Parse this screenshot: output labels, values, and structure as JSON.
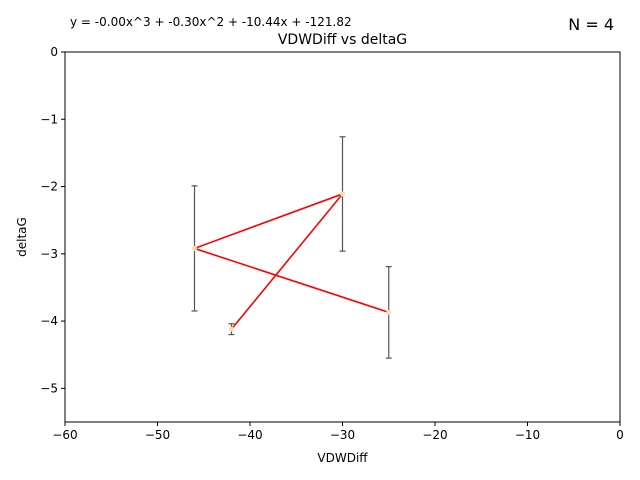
{
  "chart_data": {
    "type": "line",
    "title": "VDWDiff vs deltaG",
    "xlabel": "VDWDiff",
    "ylabel": "deltaG",
    "equation": "y = -0.00x^3 + -0.30x^2 + -10.44x + -121.82",
    "count_label": "N = 4",
    "xlim": [
      -60,
      0
    ],
    "ylim": [
      -5.5,
      0
    ],
    "x_ticks": [
      -60,
      -50,
      -40,
      -30,
      -20,
      -10,
      0
    ],
    "y_ticks": [
      0,
      -1,
      -2,
      -3,
      -4,
      -5
    ],
    "x_tick_labels": [
      "−60",
      "−50",
      "−40",
      "−30",
      "−20",
      "−10",
      "0"
    ],
    "y_tick_labels": [
      "0",
      "−1",
      "−2",
      "−3",
      "−4",
      "−5"
    ],
    "grid": false,
    "series": [
      {
        "x": [
          -42,
          -30,
          -46,
          -25
        ],
        "y": [
          -4.12,
          -2.11,
          -2.92,
          -3.87
        ],
        "error": [
          0.08,
          0.85,
          0.93,
          0.68
        ]
      }
    ],
    "colors": {
      "line": "#ff0000",
      "marker": "#f5deb3",
      "errorbar": "#555555"
    }
  }
}
